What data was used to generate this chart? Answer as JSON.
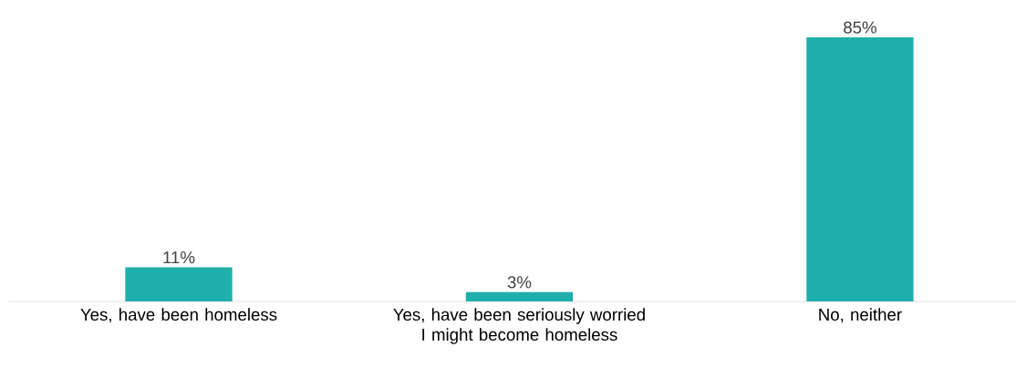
{
  "chart_data": {
    "type": "bar",
    "categories": [
      "Yes, have been homeless",
      "Yes, have been seriously worried I might become homeless",
      "No, neither"
    ],
    "values": [
      11,
      3,
      85
    ],
    "value_labels": [
      "11%",
      "3%",
      "85%"
    ],
    "color": "#1fb0ac"
  }
}
